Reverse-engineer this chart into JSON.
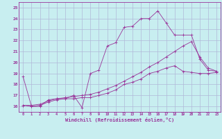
{
  "xlabel": "Windchill (Refroidissement éolien,°C)",
  "background_color": "#c8eef0",
  "grid_color": "#b0b8d8",
  "line_color": "#993399",
  "xlim": [
    -0.5,
    23.5
  ],
  "ylim": [
    15.5,
    25.5
  ],
  "yticks": [
    16,
    17,
    18,
    19,
    20,
    21,
    22,
    23,
    24,
    25
  ],
  "xticks": [
    0,
    1,
    2,
    3,
    4,
    5,
    6,
    7,
    8,
    9,
    10,
    11,
    12,
    13,
    14,
    15,
    16,
    17,
    18,
    19,
    20,
    21,
    22,
    23
  ],
  "line1_x": [
    0,
    1,
    2,
    3,
    4,
    5,
    6,
    7,
    8,
    9,
    10,
    11,
    12,
    13,
    14,
    15,
    16,
    17,
    18,
    19,
    20,
    21,
    22,
    23
  ],
  "line1_y": [
    18.7,
    16.0,
    16.0,
    16.6,
    16.7,
    16.7,
    17.0,
    15.9,
    19.0,
    19.3,
    21.5,
    21.8,
    23.2,
    23.3,
    24.0,
    24.0,
    24.7,
    23.6,
    22.5,
    22.5,
    22.5,
    20.3,
    19.3,
    19.2
  ],
  "line2_x": [
    0,
    1,
    2,
    3,
    4,
    5,
    6,
    7,
    8,
    9,
    10,
    11,
    12,
    13,
    14,
    15,
    16,
    17,
    18,
    19,
    20,
    21,
    22,
    23
  ],
  "line2_y": [
    16.1,
    16.0,
    16.1,
    16.4,
    16.6,
    16.7,
    16.7,
    16.8,
    16.8,
    17.0,
    17.2,
    17.5,
    18.0,
    18.2,
    18.5,
    19.0,
    19.2,
    19.5,
    19.7,
    19.2,
    19.1,
    19.0,
    19.0,
    19.1
  ],
  "line3_x": [
    0,
    1,
    2,
    3,
    4,
    5,
    6,
    7,
    8,
    9,
    10,
    11,
    12,
    13,
    14,
    15,
    16,
    17,
    18,
    19,
    20,
    21,
    22,
    23
  ],
  "line3_y": [
    16.1,
    16.1,
    16.2,
    16.5,
    16.7,
    16.8,
    16.9,
    17.0,
    17.1,
    17.3,
    17.6,
    17.9,
    18.3,
    18.7,
    19.1,
    19.6,
    20.0,
    20.5,
    21.0,
    21.5,
    21.9,
    20.5,
    19.5,
    19.2
  ]
}
